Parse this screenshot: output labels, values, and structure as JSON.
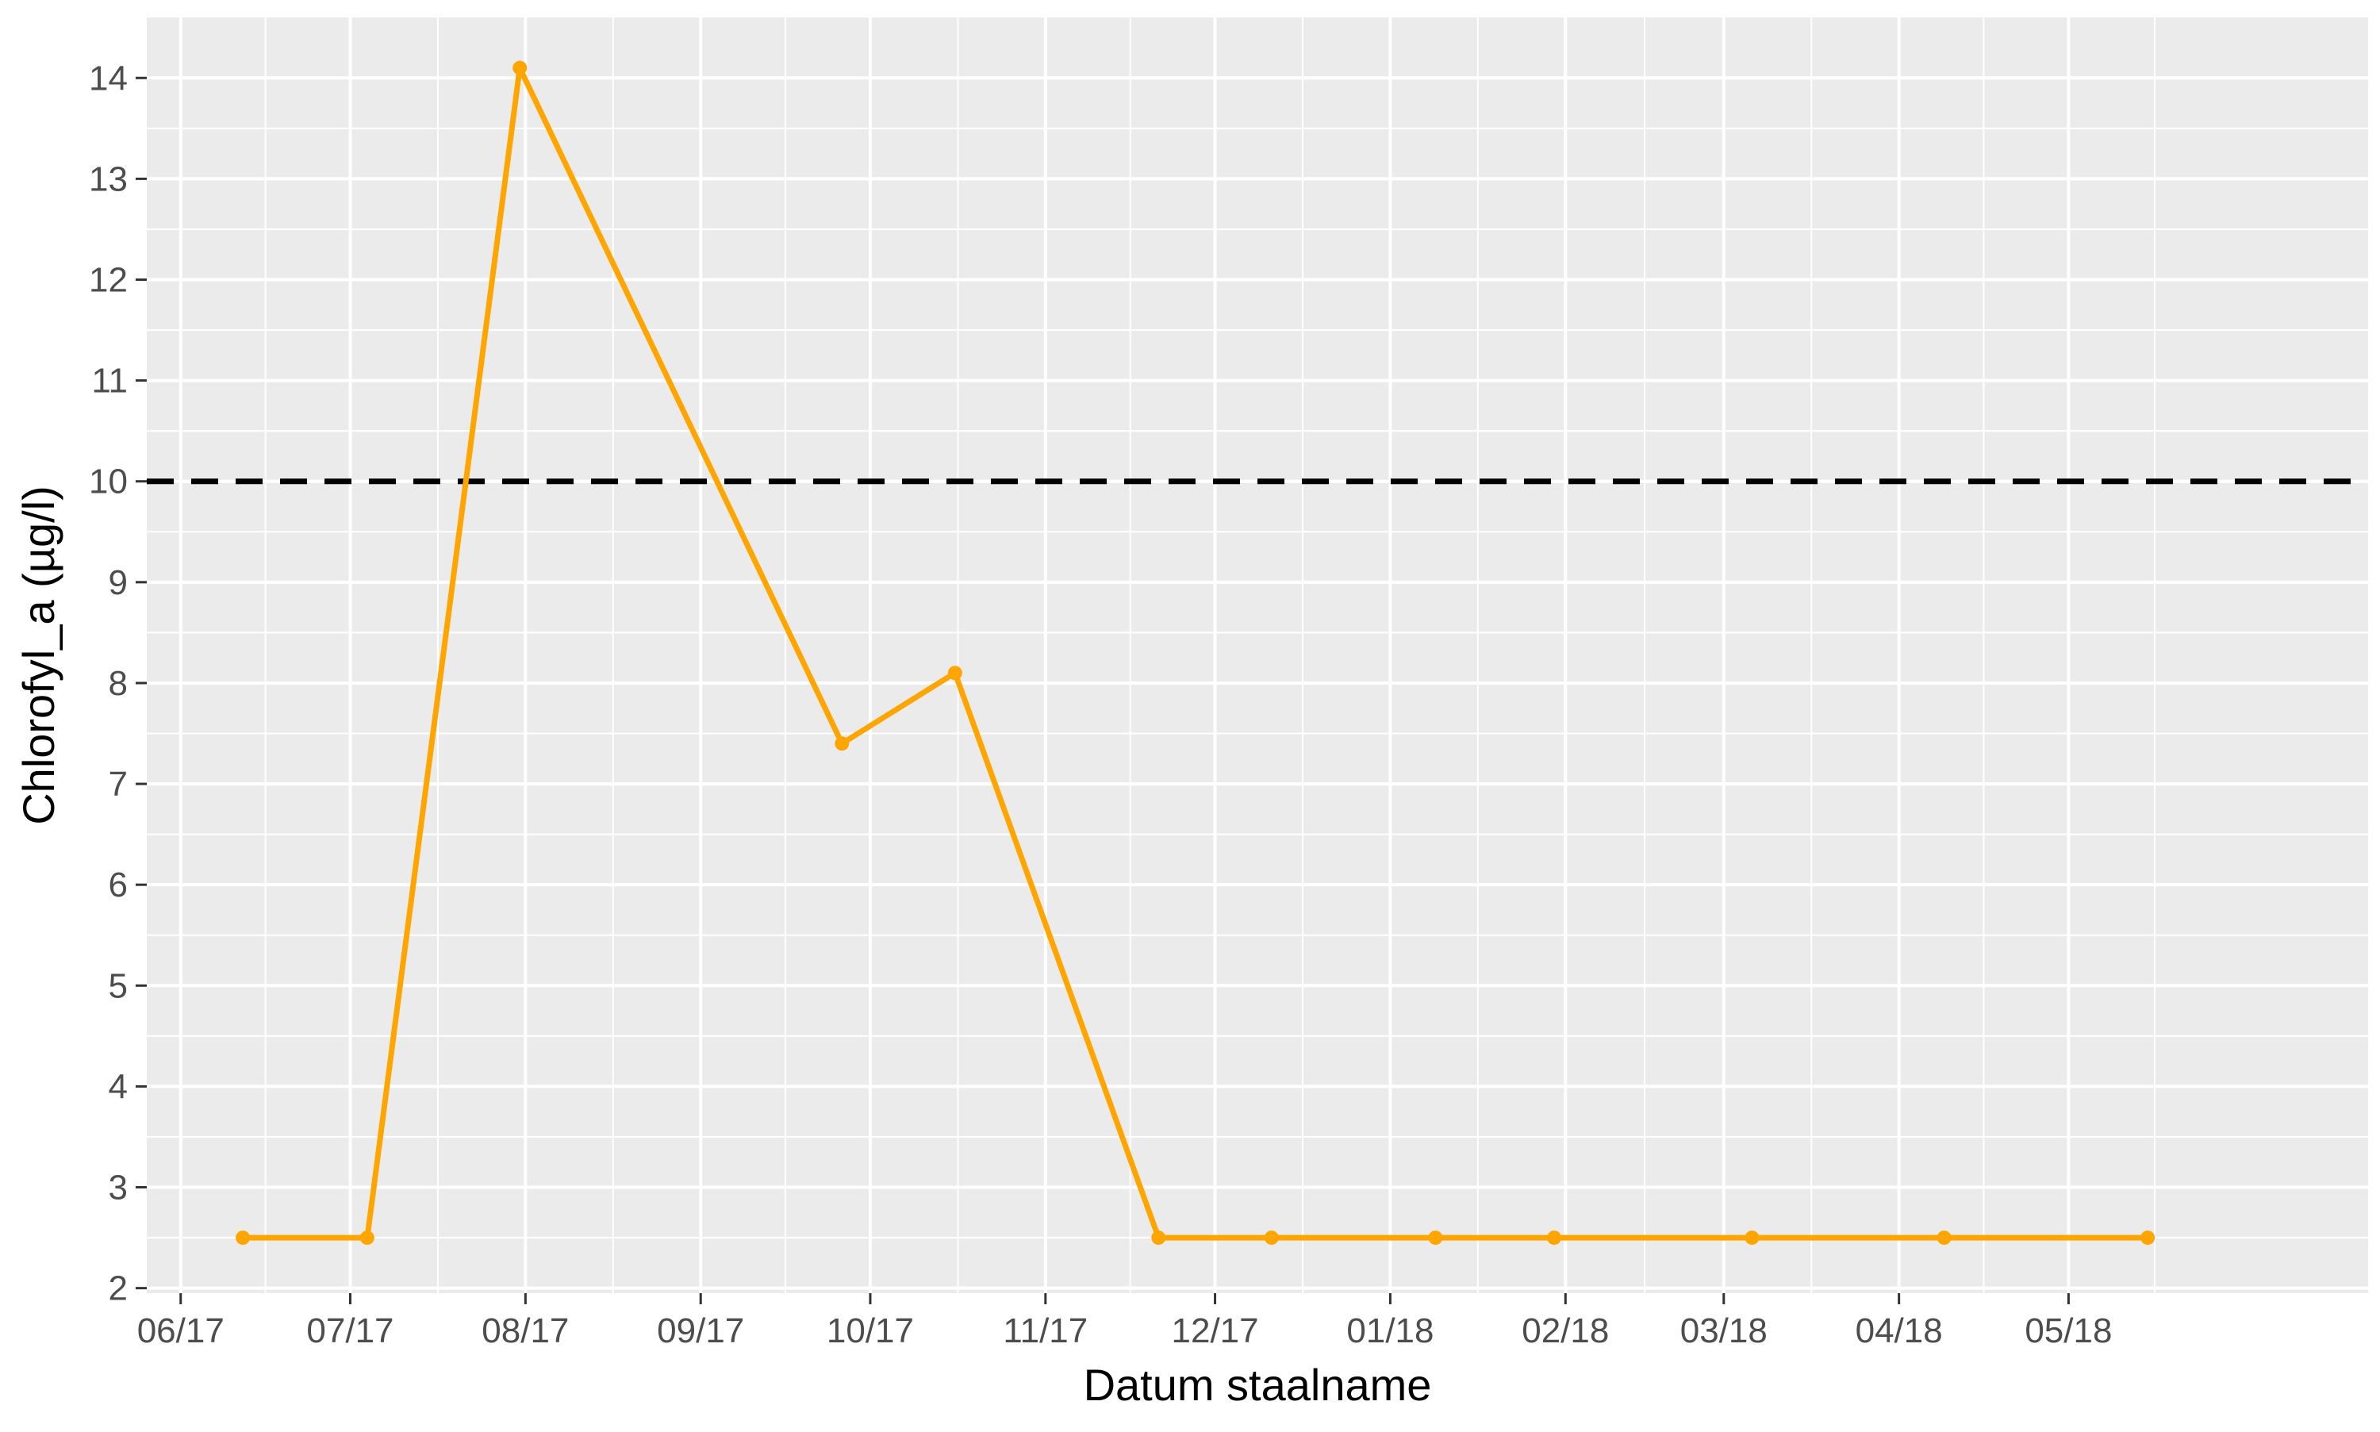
{
  "chart_data": {
    "type": "line",
    "xlabel": "Datum staalname",
    "ylabel": "Chlorofyl_a (µg/l)",
    "x_tick_labels": [
      "06/17",
      "07/17",
      "08/17",
      "09/17",
      "10/17",
      "11/17",
      "12/17",
      "01/18",
      "02/18",
      "03/18",
      "04/18",
      "05/18"
    ],
    "x_tick_dates": [
      "2017-06-01",
      "2017-07-01",
      "2017-08-01",
      "2017-09-01",
      "2017-10-01",
      "2017-11-01",
      "2017-12-01",
      "2018-01-01",
      "2018-02-01",
      "2018-03-01",
      "2018-04-01",
      "2018-05-01"
    ],
    "x_range": [
      "2017-05-26",
      "2018-06-23"
    ],
    "y_ticks": [
      2,
      3,
      4,
      5,
      6,
      7,
      8,
      9,
      10,
      11,
      12,
      13,
      14
    ],
    "ylim": [
      1.95,
      14.6
    ],
    "grid": true,
    "reference_line": {
      "y": 10,
      "style": "dashed",
      "color": "#000000"
    },
    "series": [
      {
        "color": "#FFA500",
        "points": [
          {
            "x": "2017-06-12",
            "y": 2.5
          },
          {
            "x": "2017-07-04",
            "y": 2.5
          },
          {
            "x": "2017-07-31",
            "y": 14.1
          },
          {
            "x": "2017-09-26",
            "y": 7.4
          },
          {
            "x": "2017-10-16",
            "y": 8.1
          },
          {
            "x": "2017-11-21",
            "y": 2.5
          },
          {
            "x": "2017-12-11",
            "y": 2.5
          },
          {
            "x": "2018-01-09",
            "y": 2.5
          },
          {
            "x": "2018-01-30",
            "y": 2.5
          },
          {
            "x": "2018-03-06",
            "y": 2.5
          },
          {
            "x": "2018-04-09",
            "y": 2.5
          },
          {
            "x": "2018-05-15",
            "y": 2.5
          }
        ]
      }
    ],
    "colors": {
      "panel_background": "#EBEBEB",
      "grid": "#FFFFFF",
      "line": "#FFA500"
    }
  }
}
